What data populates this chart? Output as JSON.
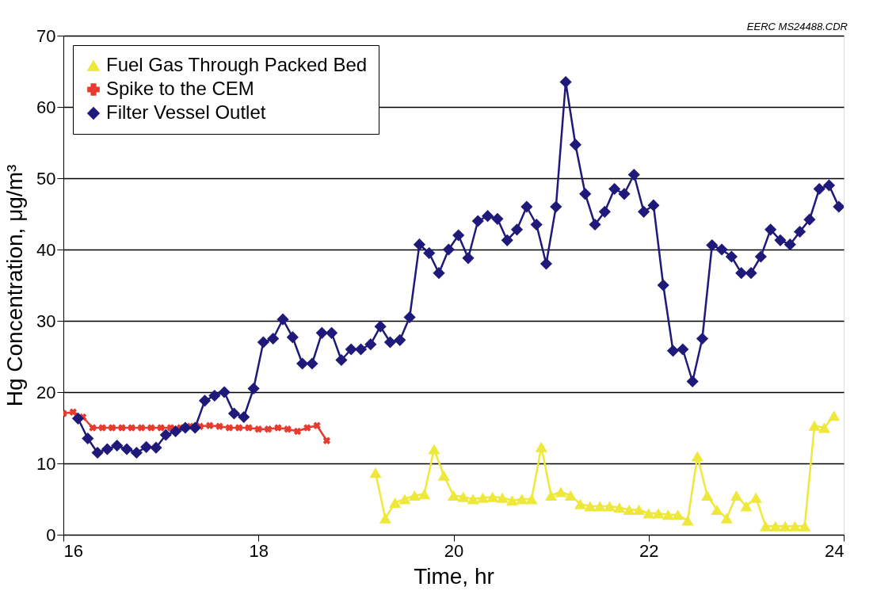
{
  "chart_data": {
    "type": "line",
    "xlabel": "Time, hr",
    "ylabel": "Hg Concentration, μg/m³",
    "annotations": [
      "EERC MS24488.CDR"
    ],
    "xlim": [
      16,
      24
    ],
    "xticks": [
      16,
      18,
      20,
      22,
      24
    ],
    "ylim": [
      0,
      70
    ],
    "yticks": [
      0,
      10,
      20,
      30,
      40,
      50,
      60,
      70
    ],
    "grid": "y",
    "legend": "top left",
    "series": [
      {
        "name": "Fuel Gas Through Packed Bed",
        "color": "#ede83a",
        "marker": "triangle",
        "x": [
          19.2,
          19.3,
          19.4,
          19.5,
          19.6,
          19.7,
          19.8,
          19.9,
          20.0,
          20.1,
          20.2,
          20.3,
          20.4,
          20.5,
          20.6,
          20.7,
          20.8,
          20.9,
          21.0,
          21.1,
          21.2,
          21.3,
          21.4,
          21.5,
          21.6,
          21.7,
          21.8,
          21.9,
          22.0,
          22.1,
          22.2,
          22.3,
          22.4,
          22.5,
          22.6,
          22.7,
          22.8,
          22.9,
          23.0,
          23.1,
          23.2,
          23.3,
          23.4,
          23.5,
          23.6,
          23.7,
          23.8,
          23.9
        ],
        "values": [
          8.7,
          2.3,
          4.5,
          5,
          5.5,
          5.7,
          12,
          8.3,
          5.5,
          5.3,
          5,
          5.2,
          5.3,
          5.2,
          4.8,
          5,
          5,
          12.3,
          5.5,
          6,
          5.5,
          4.3,
          4,
          4,
          4,
          3.8,
          3.5,
          3.5,
          3,
          3,
          2.8,
          2.8,
          2,
          11,
          5.5,
          3.5,
          2.3,
          5.5,
          4,
          5.2,
          1.2,
          1.2,
          1.2,
          1.2,
          1.2,
          15.3,
          15,
          16.7
        ]
      },
      {
        "name": "Spike to the CEM",
        "color": "#e63b2e",
        "marker": "cross",
        "x": [
          16.0,
          16.1,
          16.2,
          16.3,
          16.4,
          16.5,
          16.6,
          16.7,
          16.8,
          16.9,
          17.0,
          17.1,
          17.2,
          17.3,
          17.4,
          17.5,
          17.6,
          17.7,
          17.8,
          17.9,
          18.0,
          18.1,
          18.2,
          18.3,
          18.4,
          18.5,
          18.6,
          18.7
        ],
        "values": [
          17,
          17.2,
          16.5,
          15,
          15,
          15,
          15,
          15,
          15,
          15,
          15,
          15,
          15,
          15.2,
          15.2,
          15.3,
          15.2,
          15,
          15,
          15,
          14.8,
          14.8,
          15,
          14.8,
          14.5,
          15,
          15.3,
          13.2
        ]
      },
      {
        "name": "Filter Vessel Outlet",
        "color": "#1f1a7a",
        "marker": "diamond",
        "x": [
          16.15,
          16.25,
          16.35,
          16.45,
          16.55,
          16.65,
          16.75,
          16.85,
          16.95,
          17.05,
          17.15,
          17.25,
          17.35,
          17.45,
          17.55,
          17.65,
          17.75,
          17.85,
          17.95,
          18.05,
          18.15,
          18.25,
          18.35,
          18.45,
          18.55,
          18.65,
          18.75,
          18.85,
          18.95,
          19.05,
          19.15,
          19.25,
          19.35,
          19.45,
          19.55,
          19.65,
          19.75,
          19.85,
          19.95,
          20.05,
          20.15,
          20.25,
          20.35,
          20.45,
          20.55,
          20.65,
          20.75,
          20.85,
          20.95,
          21.05,
          21.15,
          21.25,
          21.35,
          21.45,
          21.55,
          21.65,
          21.75,
          21.85,
          21.95,
          22.05,
          22.15,
          22.25,
          22.35,
          22.45,
          22.55,
          22.65,
          22.75,
          22.85,
          22.95,
          23.05,
          23.15,
          23.25,
          23.35,
          23.45,
          23.55,
          23.65,
          23.75,
          23.85,
          23.95
        ],
        "values": [
          16.3,
          13.5,
          11.5,
          12,
          12.5,
          12,
          11.5,
          12.3,
          12.2,
          14,
          14.5,
          15,
          15,
          18.8,
          19.5,
          20,
          17,
          16.5,
          20.5,
          27,
          27.5,
          30.2,
          27.7,
          24,
          24,
          28.3,
          28.3,
          24.5,
          26,
          26,
          26.7,
          29.2,
          27,
          27.3,
          30.5,
          40.7,
          39.5,
          36.7,
          40,
          42,
          38.8,
          44,
          44.7,
          44.3,
          41.3,
          42.8,
          46,
          43.5,
          38,
          46,
          63.5,
          54.7,
          47.8,
          43.5,
          45.3,
          48.5,
          47.8,
          50.5,
          45.3,
          46.2,
          35,
          25.8,
          26,
          21.5,
          27.5,
          40.6,
          40,
          39,
          36.7,
          36.7,
          39,
          42.8,
          41.3,
          40.7,
          42.5,
          44.2,
          48.5,
          49,
          46
        ]
      }
    ]
  }
}
